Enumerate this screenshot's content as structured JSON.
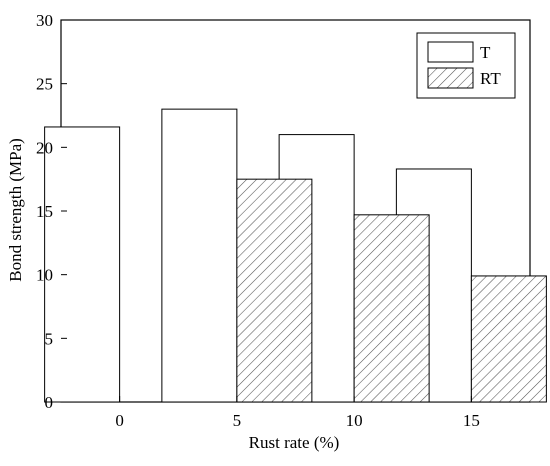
{
  "chart_data": {
    "type": "bar",
    "title": "",
    "xlabel": "Rust rate (%)",
    "ylabel": "Bond strength (MPa)",
    "categories": [
      "0",
      "5",
      "10",
      "15"
    ],
    "ylim": [
      0,
      30
    ],
    "yticks": [
      0,
      5,
      10,
      15,
      20,
      25,
      30
    ],
    "grid": false,
    "legend_position": "top-right",
    "series": [
      {
        "name": "T",
        "values": [
          21.6,
          23.0,
          21.0,
          18.3
        ],
        "fill": "#ffffff",
        "pattern": "none"
      },
      {
        "name": "RT",
        "values": [
          null,
          17.5,
          14.7,
          9.9
        ],
        "fill": "#ffffff",
        "pattern": "diagonal-hatch"
      }
    ],
    "colors": {
      "stroke": "#000000",
      "hatch": "#555555",
      "background": "#ffffff"
    }
  }
}
